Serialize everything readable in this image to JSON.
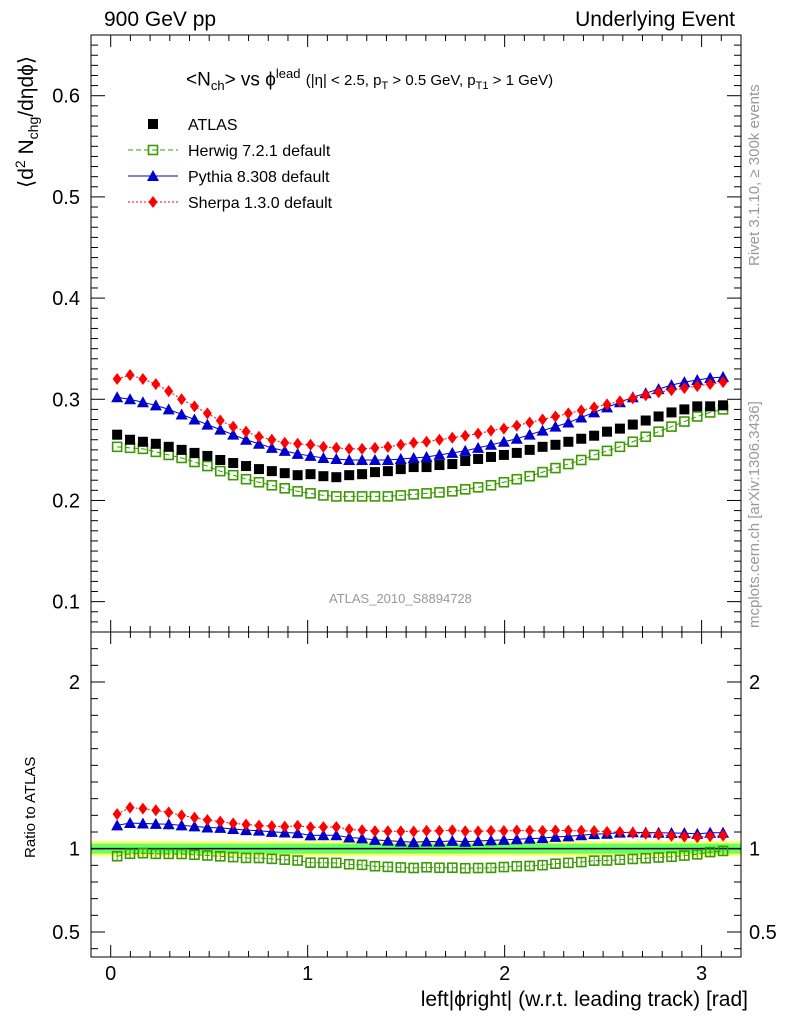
{
  "header": {
    "left": "900 GeV pp",
    "right": "Underlying Event"
  },
  "side_labels": {
    "rivet": "Rivet 3.1.10, ≥ 300k events",
    "mcplots": "mcplots.cern.ch [arXiv:1306.3436]"
  },
  "chart_data": {
    "type": "scatter",
    "title": {
      "main": "<N",
      "main_sub": "ch",
      "main_rest": "> vs ϕ",
      "main_sup": "lead",
      "cuts_a": "(|η| < 2.5, p",
      "cuts_sub1": "T",
      "cuts_b": " > 0.5 GeV, p",
      "cuts_sub2": "T1",
      "cuts_c": " > 1 GeV)"
    },
    "analysis_id": "ATLAS_2010_S8894728",
    "xlabel": "left|ϕright| (w.r.t. leading track) [rad]",
    "ylabel": {
      "a": "⟨d",
      "sup": "2",
      "b": " N",
      "sub": "chg",
      "c": "/dηdϕ⟩"
    },
    "ratio_ylabel": "Ratio to ATLAS",
    "xlim": [
      -0.1,
      3.2
    ],
    "ylim_main": [
      0.07,
      0.66
    ],
    "ylim_ratio": [
      0.35,
      2.3
    ],
    "x_ticks": [
      "0",
      "1",
      "2",
      "3"
    ],
    "y_ticks_main": [
      "0.1",
      "0.2",
      "0.3",
      "0.4",
      "0.5",
      "0.6"
    ],
    "y_ticks_ratio": [
      "0.5",
      "1",
      "2"
    ],
    "x": [
      0.0327,
      0.0982,
      0.1636,
      0.2291,
      0.2945,
      0.36,
      0.4254,
      0.4909,
      0.5563,
      0.6218,
      0.6872,
      0.7527,
      0.8181,
      0.8836,
      0.949,
      1.0145,
      1.0799,
      1.1454,
      1.2108,
      1.2763,
      1.3417,
      1.4072,
      1.4726,
      1.5381,
      1.6035,
      1.669,
      1.7344,
      1.7999,
      1.8653,
      1.9308,
      1.9962,
      2.0617,
      2.1271,
      2.1926,
      2.258,
      2.3235,
      2.3889,
      2.4544,
      2.5198,
      2.5853,
      2.6507,
      2.7162,
      2.7816,
      2.8471,
      2.9125,
      2.978,
      3.0434,
      3.1089
    ],
    "series": [
      {
        "name": "ATLAS",
        "color": "#000000",
        "marker": "filled-square",
        "values": [
          0.265,
          0.26,
          0.258,
          0.256,
          0.253,
          0.25,
          0.247,
          0.244,
          0.24,
          0.237,
          0.234,
          0.231,
          0.229,
          0.227,
          0.225,
          0.226,
          0.224,
          0.223,
          0.225,
          0.226,
          0.228,
          0.229,
          0.231,
          0.233,
          0.233,
          0.235,
          0.236,
          0.239,
          0.241,
          0.243,
          0.245,
          0.247,
          0.25,
          0.253,
          0.255,
          0.258,
          0.261,
          0.264,
          0.268,
          0.271,
          0.275,
          0.279,
          0.283,
          0.287,
          0.29,
          0.293,
          0.293,
          0.294
        ]
      },
      {
        "name": "Herwig 7.2.1 default",
        "color": "#3a9a00",
        "marker": "open-square",
        "values": [
          0.253,
          0.252,
          0.251,
          0.248,
          0.245,
          0.242,
          0.238,
          0.234,
          0.229,
          0.225,
          0.221,
          0.218,
          0.215,
          0.212,
          0.209,
          0.207,
          0.205,
          0.204,
          0.204,
          0.204,
          0.204,
          0.204,
          0.205,
          0.206,
          0.207,
          0.208,
          0.209,
          0.211,
          0.213,
          0.215,
          0.218,
          0.221,
          0.224,
          0.228,
          0.232,
          0.236,
          0.24,
          0.245,
          0.249,
          0.253,
          0.258,
          0.263,
          0.268,
          0.273,
          0.278,
          0.283,
          0.287,
          0.29
        ]
      },
      {
        "name": "Pythia 8.308 default",
        "color": "#0000cc",
        "marker": "filled-triangle",
        "values": [
          0.302,
          0.3,
          0.297,
          0.294,
          0.29,
          0.285,
          0.28,
          0.275,
          0.27,
          0.265,
          0.26,
          0.256,
          0.252,
          0.249,
          0.246,
          0.244,
          0.242,
          0.241,
          0.24,
          0.24,
          0.24,
          0.24,
          0.241,
          0.242,
          0.243,
          0.245,
          0.247,
          0.249,
          0.252,
          0.255,
          0.258,
          0.261,
          0.265,
          0.269,
          0.273,
          0.277,
          0.282,
          0.287,
          0.292,
          0.297,
          0.302,
          0.306,
          0.31,
          0.314,
          0.317,
          0.319,
          0.321,
          0.322
        ]
      },
      {
        "name": "Sherpa 1.3.0 default",
        "color": "#ff0000",
        "marker": "filled-diamond",
        "values": [
          0.32,
          0.324,
          0.32,
          0.315,
          0.308,
          0.3,
          0.293,
          0.286,
          0.279,
          0.273,
          0.268,
          0.263,
          0.26,
          0.257,
          0.256,
          0.255,
          0.253,
          0.252,
          0.251,
          0.251,
          0.252,
          0.253,
          0.255,
          0.257,
          0.258,
          0.26,
          0.262,
          0.264,
          0.266,
          0.269,
          0.271,
          0.274,
          0.277,
          0.28,
          0.283,
          0.286,
          0.289,
          0.292,
          0.295,
          0.298,
          0.301,
          0.304,
          0.307,
          0.309,
          0.311,
          0.313,
          0.315,
          0.317
        ]
      }
    ],
    "ratio_band": {
      "inner": 0.03,
      "outer": 0.045,
      "inner_color": "#66ff66",
      "outer_color": "#ffff66"
    }
  }
}
